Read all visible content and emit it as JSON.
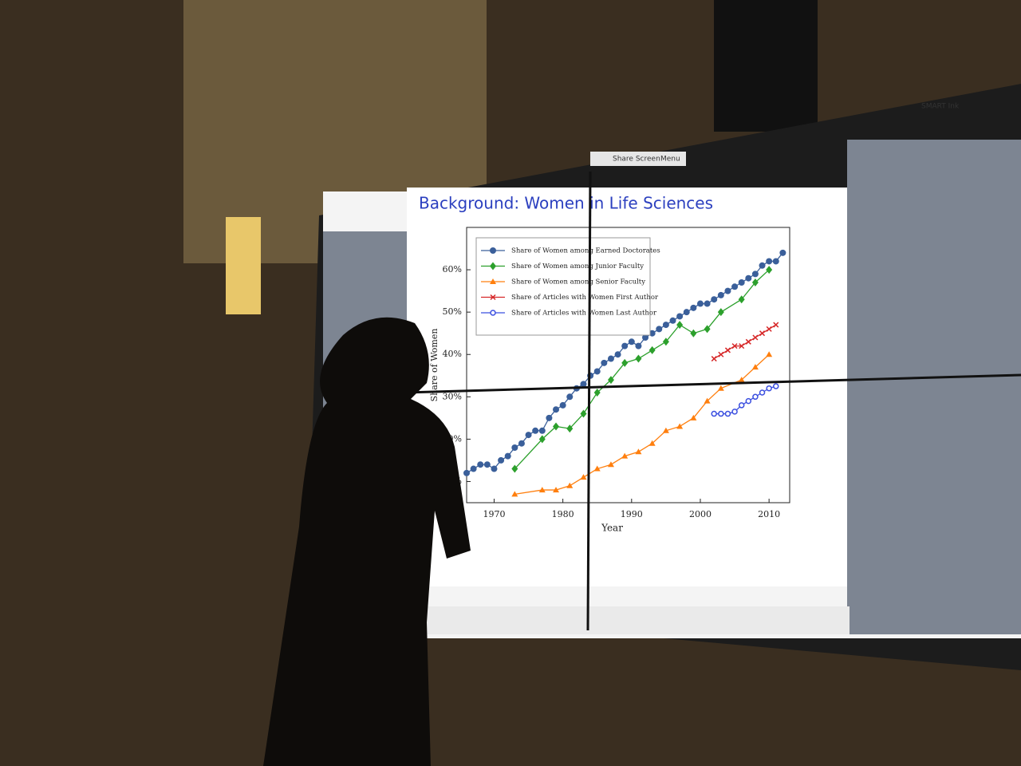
{
  "ui": {
    "smart_ink": "SMART Ink",
    "share_screen": "Share Screen",
    "menu": "Menu"
  },
  "slide": {
    "title": "Background: Women in Life Sciences"
  },
  "chart_data": {
    "type": "line",
    "xlabel": "Year",
    "ylabel": "Share of Women",
    "xlim": [
      1966,
      2013
    ],
    "ylim": [
      5,
      70
    ],
    "xticks": [
      1970,
      1980,
      1990,
      2000,
      2010
    ],
    "yticks": [
      {
        "value": 10,
        "label": "10%"
      },
      {
        "value": 20,
        "label": "20%"
      },
      {
        "value": 30,
        "label": "30%"
      },
      {
        "value": 40,
        "label": "40%"
      },
      {
        "value": 50,
        "label": "50%"
      },
      {
        "value": 60,
        "label": "60%"
      }
    ],
    "legend": "upper left",
    "series": [
      {
        "name": "Share of Women among Earned Doctorates",
        "color": "#3a5f9a",
        "marker": "circle",
        "x": [
          1966,
          1967,
          1968,
          1969,
          1970,
          1971,
          1972,
          1973,
          1974,
          1975,
          1976,
          1977,
          1978,
          1979,
          1980,
          1981,
          1982,
          1983,
          1984,
          1985,
          1986,
          1987,
          1988,
          1989,
          1990,
          1991,
          1992,
          1993,
          1994,
          1995,
          1996,
          1997,
          1998,
          1999,
          2000,
          2001,
          2002,
          2003,
          2004,
          2005,
          2006,
          2007,
          2008,
          2009,
          2010,
          2011,
          2012
        ],
        "values": [
          12,
          13,
          14,
          14,
          13,
          15,
          16,
          18,
          19,
          21,
          22,
          22,
          25,
          27,
          28,
          30,
          32,
          33,
          35,
          36,
          38,
          39,
          40,
          42,
          43,
          42,
          44,
          45,
          46,
          47,
          48,
          49,
          50,
          51,
          52,
          52,
          53,
          54,
          55,
          56,
          57,
          58,
          59,
          61,
          62,
          62,
          64
        ]
      },
      {
        "name": "Share of Women among Junior Faculty",
        "color": "#2ca02c",
        "marker": "diamond",
        "x": [
          1973,
          1977,
          1979,
          1981,
          1983,
          1985,
          1987,
          1989,
          1991,
          1993,
          1995,
          1997,
          1999,
          2001,
          2003,
          2006,
          2008,
          2010
        ],
        "values": [
          13,
          20,
          23,
          22.5,
          26,
          31,
          34,
          38,
          39,
          41,
          43,
          47,
          45,
          46,
          50,
          53,
          57,
          60
        ]
      },
      {
        "name": "Share of Women among Senior Faculty",
        "color": "#ff7f0e",
        "marker": "triangle",
        "x": [
          1973,
          1977,
          1979,
          1981,
          1983,
          1985,
          1987,
          1989,
          1991,
          1993,
          1995,
          1997,
          1999,
          2001,
          2003,
          2006,
          2008,
          2010
        ],
        "values": [
          7,
          8,
          8,
          9,
          11,
          13,
          14,
          16,
          17,
          19,
          22,
          23,
          25,
          29,
          32,
          34,
          37,
          40
        ]
      },
      {
        "name": "Share of Articles with Women First Author",
        "color": "#d62728",
        "marker": "x",
        "x": [
          2002,
          2003,
          2004,
          2005,
          2006,
          2007,
          2008,
          2009,
          2010,
          2011
        ],
        "values": [
          39,
          40,
          41,
          42,
          42,
          43,
          44,
          45,
          46,
          47
        ]
      },
      {
        "name": "Share of Articles with Women Last Author",
        "color": "#3b4fe0",
        "marker": "open",
        "x": [
          2002,
          2003,
          2004,
          2005,
          2006,
          2007,
          2008,
          2009,
          2010,
          2011
        ],
        "values": [
          26,
          26,
          26,
          26.5,
          28,
          29,
          30,
          31,
          32,
          32.5
        ]
      }
    ]
  }
}
